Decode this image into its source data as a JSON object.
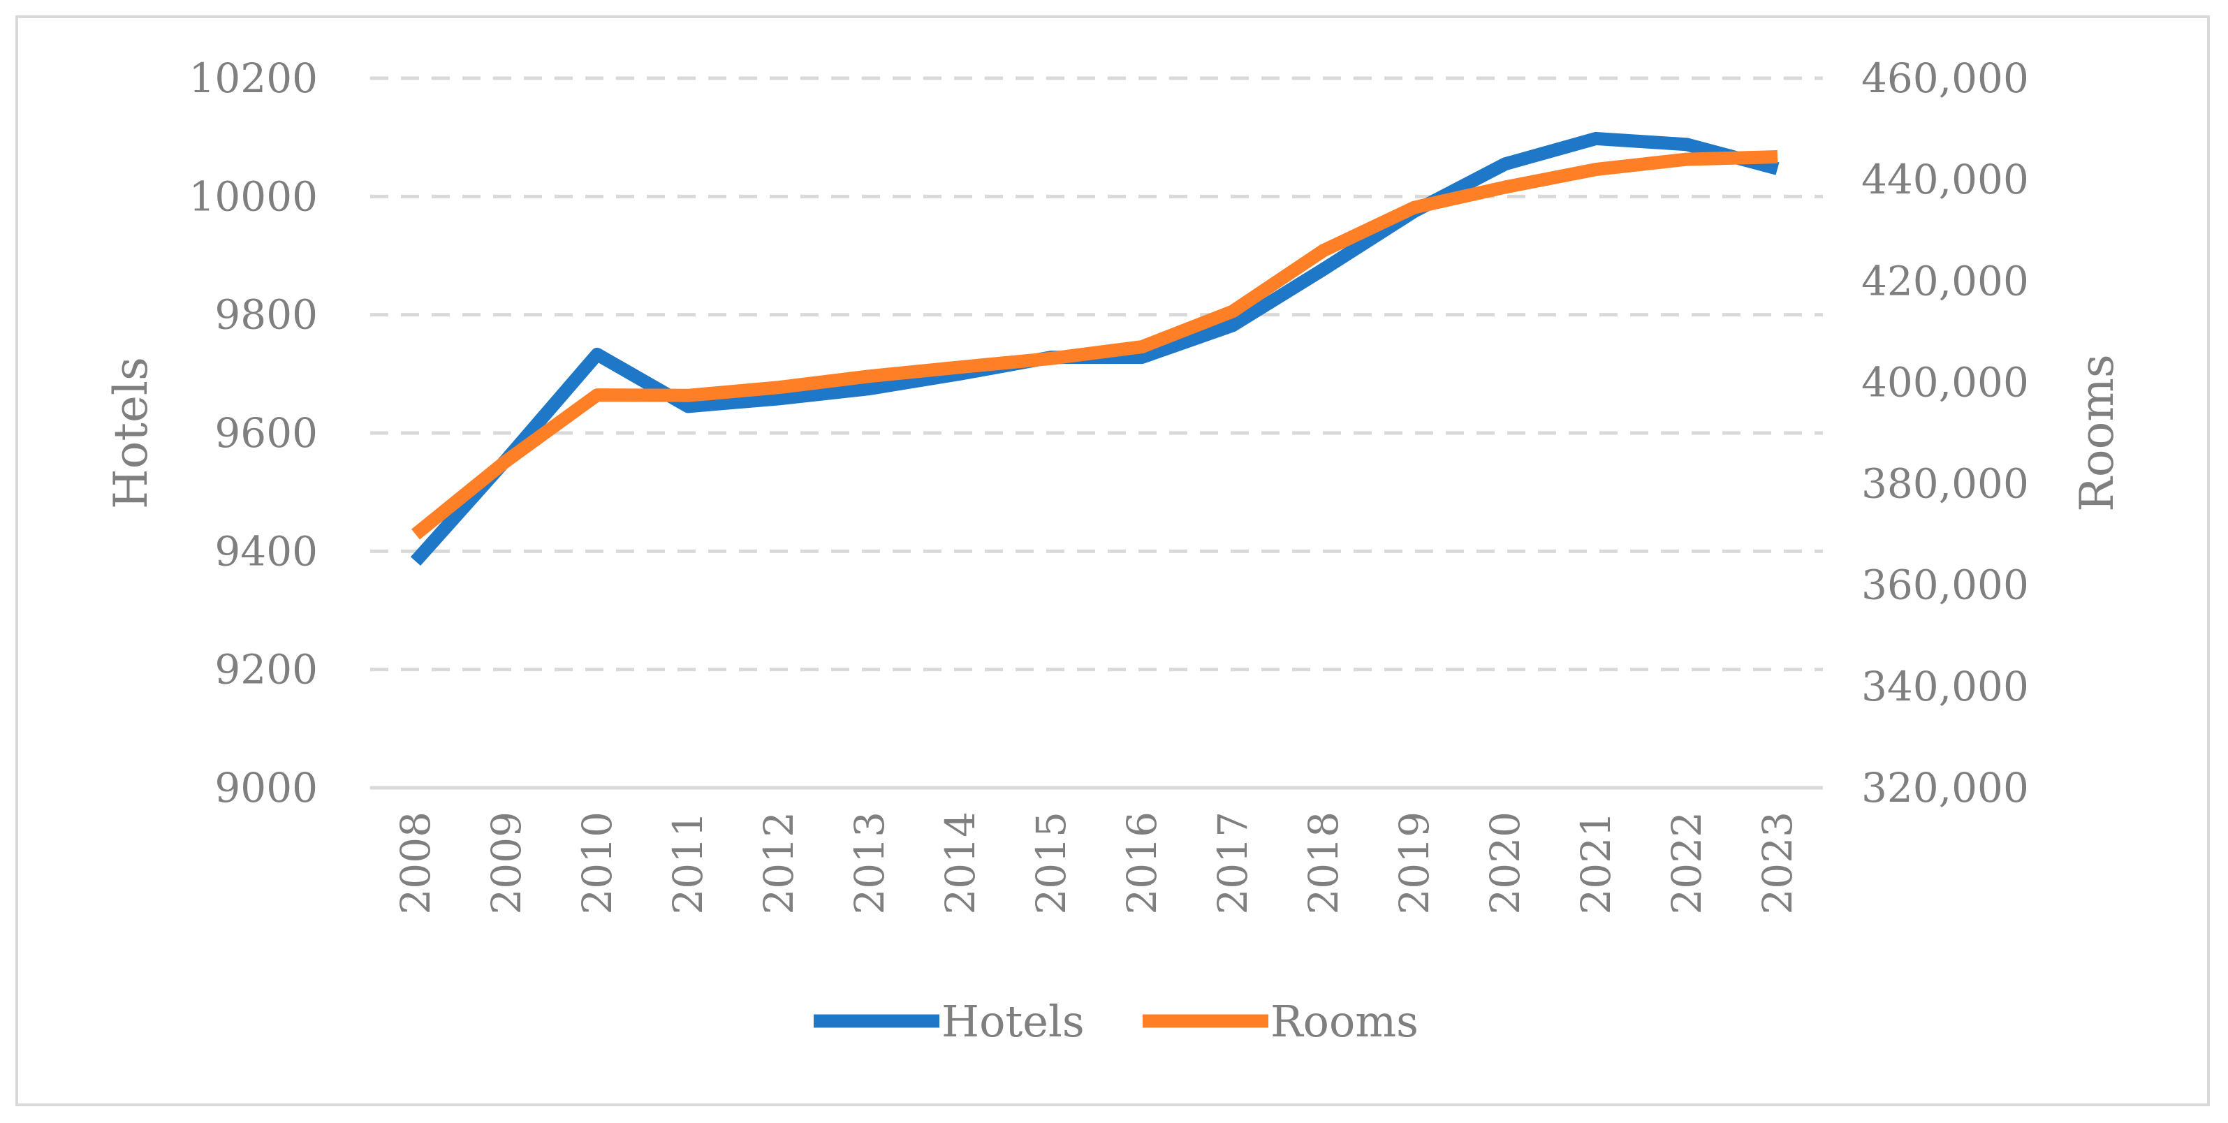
{
  "chart_data": {
    "type": "line",
    "title": "",
    "xlabel": "",
    "ylabel": "Hotels",
    "y2label": "Rooms",
    "categories": [
      "2008",
      "2009",
      "2010",
      "2011",
      "2012",
      "2013",
      "2014",
      "2015",
      "2016",
      "2017",
      "2018",
      "2019",
      "2020",
      "2021",
      "2022",
      "2023"
    ],
    "series": [
      {
        "name": "Hotels",
        "axis": "left",
        "color": "#1f77c8",
        "values": [
          9383,
          9555,
          9733,
          9645,
          9658,
          9675,
          9700,
          9728,
          9728,
          9782,
          9877,
          9975,
          10055,
          10098,
          10088,
          10047
        ]
      },
      {
        "name": "Rooms",
        "axis": "right",
        "color": "#ff7f27",
        "values": [
          370000,
          384500,
          397500,
          397400,
          399000,
          401200,
          403000,
          404700,
          407000,
          414000,
          426000,
          434500,
          438500,
          442000,
          444000,
          444500
        ]
      }
    ],
    "ylim": [
      9000,
      10200
    ],
    "y_ticks": [
      9000,
      9200,
      9400,
      9600,
      9800,
      10000,
      10200
    ],
    "y_tick_labels": [
      "9000",
      "9200",
      "9400",
      "9600",
      "9800",
      "10000",
      "10200"
    ],
    "y2lim": [
      320000,
      460000
    ],
    "y2_ticks": [
      320000,
      340000,
      360000,
      380000,
      400000,
      420000,
      440000,
      460000
    ],
    "y2_tick_labels": [
      "320,000",
      "340,000",
      "360,000",
      "380,000",
      "400,000",
      "420,000",
      "440,000",
      "460,000"
    ],
    "grid": true,
    "legend": "bottom",
    "legend_entries": [
      "Hotels",
      "Rooms"
    ]
  }
}
